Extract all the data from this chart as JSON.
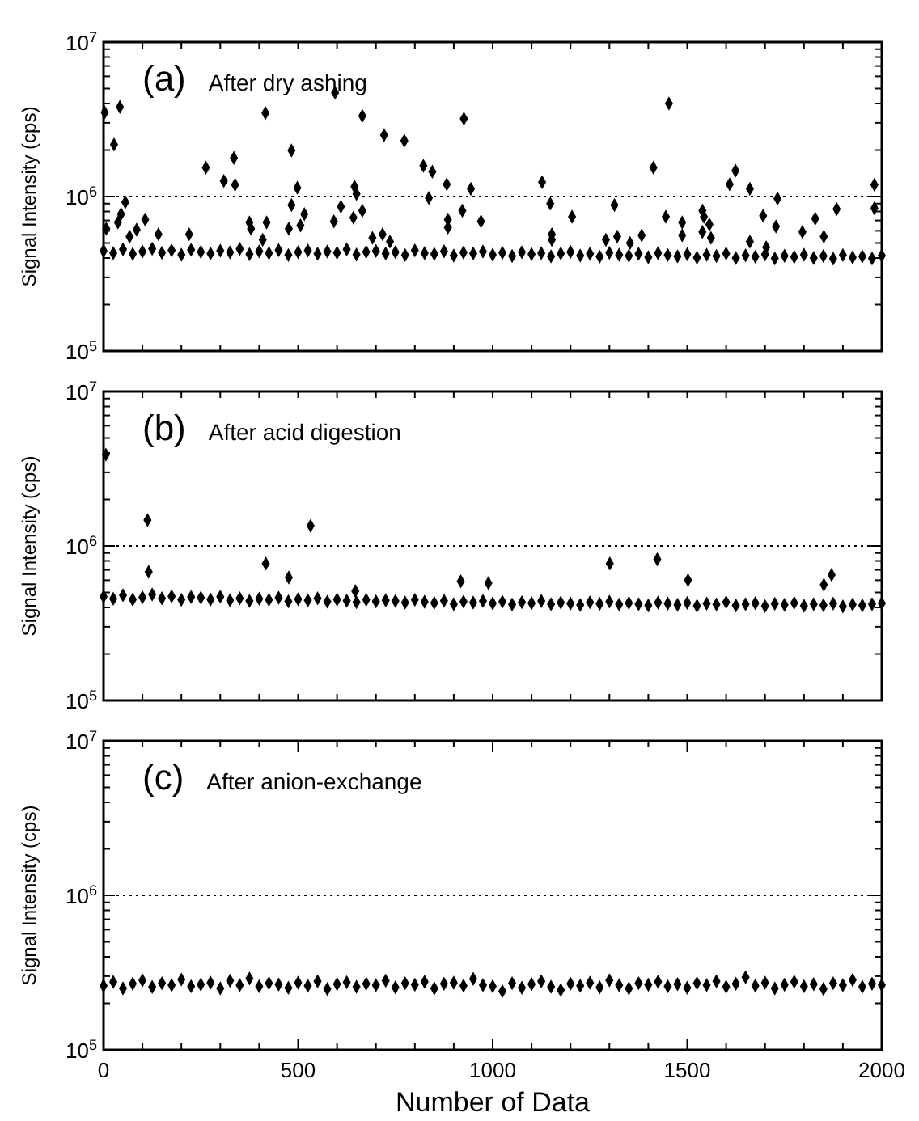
{
  "chart_data": [
    {
      "type": "scatter",
      "title": "(a) After dry ashing",
      "ylabel": "Signal Intensity (cps)",
      "log": "y",
      "marker": "diamond",
      "tick_labels": "y",
      "xlim": [
        0,
        2000
      ],
      "ylim": [
        100000,
        10000000
      ],
      "xticks": [
        {
          "value": 0,
          "label": null
        },
        {
          "value": 100,
          "label": null
        },
        {
          "value": 200,
          "label": null
        },
        {
          "value": 300,
          "label": null
        },
        {
          "value": 400,
          "label": null
        },
        {
          "value": 500,
          "label": null
        },
        {
          "value": 600,
          "label": null
        },
        {
          "value": 700,
          "label": null
        },
        {
          "value": 800,
          "label": null
        },
        {
          "value": 900,
          "label": null
        },
        {
          "value": 1000,
          "label": null
        },
        {
          "value": 1100,
          "label": null
        },
        {
          "value": 1200,
          "label": null
        },
        {
          "value": 1300,
          "label": null
        },
        {
          "value": 1400,
          "label": null
        },
        {
          "value": 1500,
          "label": null
        },
        {
          "value": 1600,
          "label": null
        },
        {
          "value": 1700,
          "label": null
        },
        {
          "value": 1800,
          "label": null
        },
        {
          "value": 1900,
          "label": null
        },
        {
          "value": 2000,
          "label": null
        }
      ],
      "yticks": [
        {
          "value": 100000,
          "label": "10$^{5}$"
        },
        {
          "value": 200000,
          "label": null
        },
        {
          "value": 300000,
          "label": null
        },
        {
          "value": 400000,
          "label": null
        },
        {
          "value": 500000,
          "label": null
        },
        {
          "value": 600000,
          "label": null
        },
        {
          "value": 700000,
          "label": null
        },
        {
          "value": 800000,
          "label": null
        },
        {
          "value": 900000,
          "label": null
        },
        {
          "value": 1000000,
          "label": "10$^{6}$"
        },
        {
          "value": 2000000,
          "label": null
        },
        {
          "value": 3000000,
          "label": null
        },
        {
          "value": 4000000,
          "label": null
        },
        {
          "value": 5000000,
          "label": null
        },
        {
          "value": 6000000,
          "label": null
        },
        {
          "value": 7000000,
          "label": null
        },
        {
          "value": 8000000,
          "label": null
        },
        {
          "value": 9000000,
          "label": null
        },
        {
          "value": 10000000,
          "label": "10$^{7}$"
        }
      ],
      "ref_lines": [
        {
          "axis": "y",
          "value": 1000000,
          "line_style": "dotted",
          "color": "#000000"
        }
      ],
      "series": [
        {
          "color": "#000000",
          "x": [
            0,
            25,
            50,
            75,
            100,
            125,
            150,
            175,
            200,
            225,
            250,
            275,
            300,
            325,
            350,
            375,
            400,
            425,
            450,
            475,
            500,
            525,
            550,
            575,
            600,
            625,
            650,
            675,
            700,
            725,
            750,
            775,
            800,
            825,
            850,
            875,
            900,
            925,
            950,
            975,
            1000,
            1025,
            1050,
            1075,
            1100,
            1125,
            1150,
            1175,
            1200,
            1225,
            1250,
            1275,
            1300,
            1325,
            1350,
            1375,
            1400,
            1425,
            1450,
            1475,
            1500,
            1525,
            1550,
            1575,
            1600,
            1625,
            1650,
            1675,
            1700,
            1725,
            1750,
            1775,
            1800,
            1825,
            1850,
            1875,
            1900,
            1925,
            1950,
            1975,
            2000
          ],
          "values": [
            445000,
            430000,
            455000,
            425000,
            440000,
            460000,
            432000,
            448000,
            420000,
            452000,
            438000,
            428000,
            446000,
            435000,
            458000,
            424000,
            442000,
            430000,
            450000,
            418000,
            436000,
            447000,
            426000,
            440000,
            432000,
            455000,
            421000,
            438000,
            444000,
            428000,
            436000,
            418000,
            448000,
            430000,
            425000,
            442000,
            415000,
            434000,
            428000,
            440000,
            420000,
            432000,
            412000,
            436000,
            424000,
            430000,
            410000,
            428000,
            438000,
            415000,
            426000,
            408000,
            432000,
            420000,
            414000,
            426000,
            405000,
            430000,
            418000,
            410000,
            424000,
            402000,
            420000,
            412000,
            428000,
            400000,
            416000,
            408000,
            422000,
            398000,
            414000,
            406000,
            420000,
            400000,
            412000,
            396000,
            418000,
            404000,
            410000,
            398000,
            415000
          ]
        },
        {
          "color": "#000000",
          "x": [
            3,
            27,
            42,
            7,
            37,
            45,
            56,
            67,
            85,
            107,
            141,
            220,
            263,
            309,
            335,
            338,
            375,
            379,
            409,
            416,
            419,
            483,
            483,
            498,
            476,
            506,
            516,
            595,
            592,
            610,
            645,
            650,
            642,
            665,
            665,
            691,
            717,
            721,
            736,
            773,
            822,
            836,
            845,
            882,
            885,
            885,
            922,
            926,
            944,
            970,
            1127,
            1148,
            1152,
            1152,
            1204,
            1291,
            1313,
            1320,
            1353,
            1383,
            1413,
            1445,
            1453,
            1487,
            1487,
            1539,
            1543,
            1539,
            1557,
            1561,
            1609,
            1624,
            1661,
            1661,
            1695,
            1728,
            1732,
            1703,
            1796,
            1829,
            1851,
            1884,
            1981,
            1981
          ],
          "values": [
            3500000,
            2170000,
            3800000,
            620000,
            680000,
            770000,
            920000,
            550000,
            610000,
            710000,
            570000,
            570000,
            1540000,
            1260000,
            1780000,
            1190000,
            680000,
            620000,
            525000,
            3470000,
            680000,
            1990000,
            880000,
            1140000,
            620000,
            650000,
            770000,
            4700000,
            690000,
            860000,
            1160000,
            1040000,
            730000,
            810000,
            3330000,
            540000,
            570000,
            2500000,
            510000,
            2300000,
            1580000,
            980000,
            1450000,
            1200000,
            710000,
            630000,
            810000,
            3190000,
            1120000,
            690000,
            1240000,
            900000,
            570000,
            525000,
            740000,
            525000,
            880000,
            550000,
            500000,
            560000,
            1540000,
            740000,
            4000000,
            680000,
            560000,
            810000,
            740000,
            590000,
            660000,
            540000,
            1200000,
            1470000,
            1120000,
            510000,
            750000,
            640000,
            970000,
            470000,
            590000,
            720000,
            550000,
            830000,
            1190000,
            840000
          ]
        }
      ]
    },
    {
      "type": "scatter",
      "title": "(b) After acid digestion",
      "ylabel": "Signal Intensity (cps)",
      "log": "y",
      "marker": "diamond",
      "tick_labels": "y",
      "xlim": [
        0,
        2000
      ],
      "ylim": [
        100000,
        10000000
      ],
      "xticks": [
        {
          "value": 0,
          "label": null
        },
        {
          "value": 100,
          "label": null
        },
        {
          "value": 200,
          "label": null
        },
        {
          "value": 300,
          "label": null
        },
        {
          "value": 400,
          "label": null
        },
        {
          "value": 500,
          "label": null
        },
        {
          "value": 600,
          "label": null
        },
        {
          "value": 700,
          "label": null
        },
        {
          "value": 800,
          "label": null
        },
        {
          "value": 900,
          "label": null
        },
        {
          "value": 1000,
          "label": null
        },
        {
          "value": 1100,
          "label": null
        },
        {
          "value": 1200,
          "label": null
        },
        {
          "value": 1300,
          "label": null
        },
        {
          "value": 1400,
          "label": null
        },
        {
          "value": 1500,
          "label": null
        },
        {
          "value": 1600,
          "label": null
        },
        {
          "value": 1700,
          "label": null
        },
        {
          "value": 1800,
          "label": null
        },
        {
          "value": 1900,
          "label": null
        },
        {
          "value": 2000,
          "label": null
        }
      ],
      "yticks": [
        {
          "value": 100000,
          "label": "10$^{5}$"
        },
        {
          "value": 200000,
          "label": null
        },
        {
          "value": 300000,
          "label": null
        },
        {
          "value": 400000,
          "label": null
        },
        {
          "value": 500000,
          "label": null
        },
        {
          "value": 600000,
          "label": null
        },
        {
          "value": 700000,
          "label": null
        },
        {
          "value": 800000,
          "label": null
        },
        {
          "value": 900000,
          "label": null
        },
        {
          "value": 1000000,
          "label": "10$^{6}$"
        },
        {
          "value": 2000000,
          "label": null
        },
        {
          "value": 3000000,
          "label": null
        },
        {
          "value": 4000000,
          "label": null
        },
        {
          "value": 5000000,
          "label": null
        },
        {
          "value": 6000000,
          "label": null
        },
        {
          "value": 7000000,
          "label": null
        },
        {
          "value": 8000000,
          "label": null
        },
        {
          "value": 9000000,
          "label": null
        },
        {
          "value": 10000000,
          "label": "10$^{7}$"
        }
      ],
      "ref_lines": [
        {
          "axis": "y",
          "value": 1000000,
          "line_style": "dotted",
          "color": "#000000"
        }
      ],
      "series": [
        {
          "color": "#000000",
          "x": [
            0,
            25,
            50,
            75,
            100,
            125,
            150,
            175,
            200,
            225,
            250,
            275,
            300,
            325,
            350,
            375,
            400,
            425,
            450,
            475,
            500,
            525,
            550,
            575,
            600,
            625,
            650,
            675,
            700,
            725,
            750,
            775,
            800,
            825,
            850,
            875,
            900,
            925,
            950,
            975,
            1000,
            1025,
            1050,
            1075,
            1100,
            1125,
            1150,
            1175,
            1200,
            1225,
            1250,
            1275,
            1300,
            1325,
            1350,
            1375,
            1400,
            1425,
            1450,
            1475,
            1500,
            1525,
            1550,
            1575,
            1600,
            1625,
            1650,
            1675,
            1700,
            1725,
            1750,
            1775,
            1800,
            1825,
            1850,
            1875,
            1900,
            1925,
            1950,
            1975,
            2000
          ],
          "values": [
            470000,
            455000,
            480000,
            450000,
            465000,
            485000,
            458000,
            472000,
            448000,
            468000,
            462000,
            450000,
            470000,
            445000,
            458000,
            440000,
            455000,
            448000,
            462000,
            438000,
            452000,
            444000,
            458000,
            436000,
            450000,
            442000,
            432000,
            448000,
            438000,
            445000,
            440000,
            430000,
            448000,
            435000,
            428000,
            442000,
            420000,
            436000,
            430000,
            440000,
            425000,
            436000,
            418000,
            432000,
            426000,
            440000,
            420000,
            430000,
            424000,
            415000,
            432000,
            422000,
            436000,
            418000,
            428000,
            420000,
            412000,
            430000,
            424000,
            416000,
            428000,
            410000,
            424000,
            418000,
            432000,
            412000,
            420000,
            426000,
            408000,
            422000,
            416000,
            428000,
            410000,
            420000,
            414000,
            424000,
            406000,
            418000,
            412000,
            420000,
            425000
          ]
        },
        {
          "color": "#000000",
          "x": [
            6,
            113,
            116,
            532,
            417,
            476,
            647,
            918,
            989,
            1301,
            1423,
            1502,
            1851,
            1871
          ],
          "values": [
            3900000,
            1470000,
            680000,
            1350000,
            770000,
            625000,
            510000,
            590000,
            575000,
            770000,
            820000,
            600000,
            560000,
            650000
          ]
        }
      ]
    },
    {
      "type": "scatter",
      "title": "(c) After anion-exchange",
      "xlabel": "Number of Data",
      "ylabel": "Signal Intensity (cps)",
      "log": "y",
      "marker": "diamond",
      "xlim": [
        0,
        2000
      ],
      "ylim": [
        100000,
        10000000
      ],
      "xticks": [
        0,
        {
          "value": 100,
          "label": null
        },
        {
          "value": 200,
          "label": null
        },
        {
          "value": 300,
          "label": null
        },
        {
          "value": 400,
          "label": null
        },
        500,
        {
          "value": 600,
          "label": null
        },
        {
          "value": 700,
          "label": null
        },
        {
          "value": 800,
          "label": null
        },
        {
          "value": 900,
          "label": null
        },
        1000,
        {
          "value": 1100,
          "label": null
        },
        {
          "value": 1200,
          "label": null
        },
        {
          "value": 1300,
          "label": null
        },
        {
          "value": 1400,
          "label": null
        },
        1500,
        {
          "value": 1600,
          "label": null
        },
        {
          "value": 1700,
          "label": null
        },
        {
          "value": 1800,
          "label": null
        },
        {
          "value": 1900,
          "label": null
        },
        2000
      ],
      "yticks": [
        {
          "value": 100000,
          "label": "10$^{5}$"
        },
        {
          "value": 200000,
          "label": null
        },
        {
          "value": 300000,
          "label": null
        },
        {
          "value": 400000,
          "label": null
        },
        {
          "value": 500000,
          "label": null
        },
        {
          "value": 600000,
          "label": null
        },
        {
          "value": 700000,
          "label": null
        },
        {
          "value": 800000,
          "label": null
        },
        {
          "value": 900000,
          "label": null
        },
        {
          "value": 1000000,
          "label": "10$^{6}$"
        },
        {
          "value": 2000000,
          "label": null
        },
        {
          "value": 3000000,
          "label": null
        },
        {
          "value": 4000000,
          "label": null
        },
        {
          "value": 5000000,
          "label": null
        },
        {
          "value": 6000000,
          "label": null
        },
        {
          "value": 7000000,
          "label": null
        },
        {
          "value": 8000000,
          "label": null
        },
        {
          "value": 9000000,
          "label": null
        },
        {
          "value": 10000000,
          "label": "10$^{7}$"
        }
      ],
      "ref_lines": [
        {
          "axis": "y",
          "value": 1000000,
          "line_style": "dotted",
          "color": "#000000"
        }
      ],
      "series": [
        {
          "color": "#000000",
          "x": [
            0,
            25,
            50,
            75,
            100,
            125,
            150,
            175,
            200,
            225,
            250,
            275,
            300,
            325,
            350,
            375,
            400,
            425,
            450,
            475,
            500,
            525,
            550,
            575,
            600,
            625,
            650,
            675,
            700,
            725,
            750,
            775,
            800,
            825,
            850,
            875,
            900,
            925,
            950,
            975,
            1000,
            1025,
            1050,
            1075,
            1100,
            1125,
            1150,
            1175,
            1200,
            1225,
            1250,
            1275,
            1300,
            1325,
            1350,
            1375,
            1400,
            1425,
            1450,
            1475,
            1500,
            1525,
            1550,
            1575,
            1600,
            1625,
            1650,
            1675,
            1700,
            1725,
            1750,
            1775,
            1800,
            1825,
            1850,
            1875,
            1900,
            1925,
            1950,
            1975,
            2000
          ],
          "values": [
            260000,
            275000,
            250000,
            268000,
            282000,
            255000,
            270000,
            262000,
            285000,
            258000,
            265000,
            272000,
            250000,
            280000,
            262000,
            290000,
            258000,
            270000,
            265000,
            252000,
            272000,
            260000,
            278000,
            248000,
            266000,
            274000,
            256000,
            268000,
            262000,
            280000,
            254000,
            270000,
            264000,
            276000,
            250000,
            268000,
            272000,
            260000,
            288000,
            262000,
            258000,
            240000,
            270000,
            252000,
            266000,
            278000,
            256000,
            244000,
            268000,
            260000,
            272000,
            254000,
            282000,
            262000,
            250000,
            270000,
            264000,
            276000,
            258000,
            266000,
            252000,
            270000,
            262000,
            278000,
            256000,
            268000,
            295000,
            260000,
            272000,
            250000,
            264000,
            276000,
            258000,
            266000,
            248000,
            270000,
            262000,
            284000,
            256000,
            268000,
            262000
          ]
        }
      ]
    }
  ]
}
